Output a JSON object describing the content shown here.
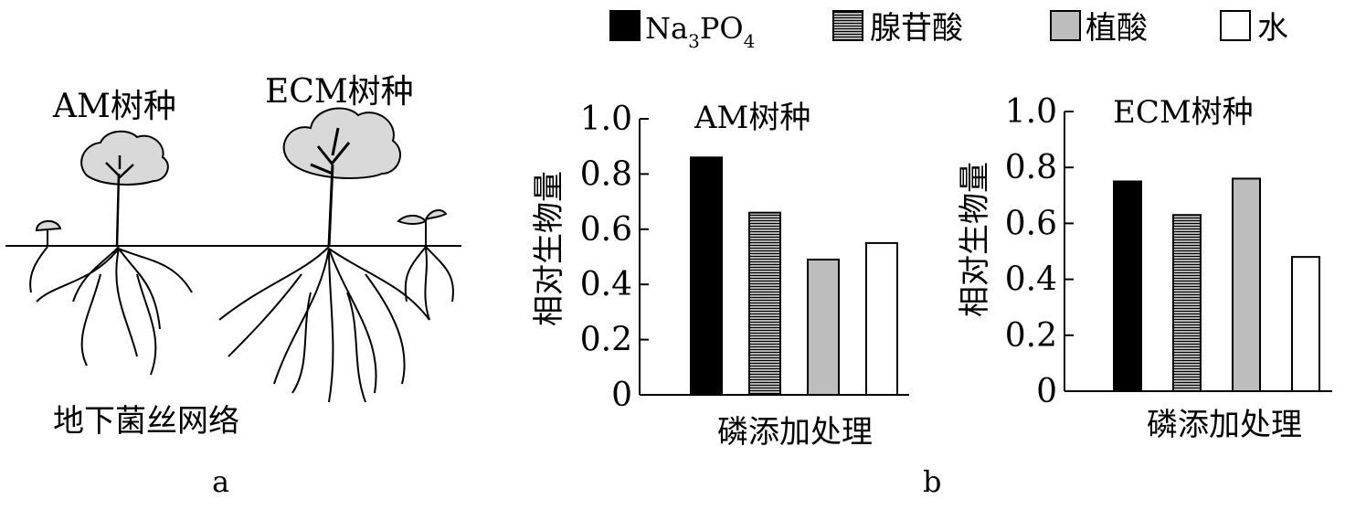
{
  "panel_a": {
    "am_label": "AM树种",
    "ecm_label": "ECM树种",
    "network_label": "地下菌丝网络",
    "panel_letter": "a"
  },
  "panel_b_letter": "b",
  "legend": [
    {
      "text": "Na",
      "sub1": "3",
      "mid": "PO",
      "sub2": "4",
      "fill": "solid-black"
    },
    {
      "text": "腺苷酸",
      "fill": "horizontal-stripes"
    },
    {
      "text": "植酸",
      "fill": "gray"
    },
    {
      "text": "水",
      "fill": "white"
    }
  ],
  "colors": {
    "black": "#000000",
    "gray": "#bdbdbd",
    "white": "#ffffff",
    "canopy": "#d9d9d9"
  },
  "chart_data": [
    {
      "type": "bar",
      "title": "AM树种",
      "ylabel": "相对生物量",
      "xlabel": "磷添加处理",
      "ylim": [
        0,
        1.0
      ],
      "yticks": [
        "0",
        "0.2",
        "0.4",
        "0.6",
        "0.8",
        "1.0"
      ],
      "categories": [
        "Na3PO4",
        "腺苷酸",
        "植酸",
        "水"
      ],
      "values": [
        0.86,
        0.66,
        0.49,
        0.55
      ]
    },
    {
      "type": "bar",
      "title": "ECM树种",
      "ylabel": "相对生物量",
      "xlabel": "磷添加处理",
      "ylim": [
        0,
        1.0
      ],
      "yticks": [
        "0",
        "0.2",
        "0.4",
        "0.6",
        "0.8",
        "1.0"
      ],
      "categories": [
        "Na3PO4",
        "腺苷酸",
        "植酸",
        "水"
      ],
      "values": [
        0.75,
        0.63,
        0.76,
        0.48
      ]
    }
  ]
}
